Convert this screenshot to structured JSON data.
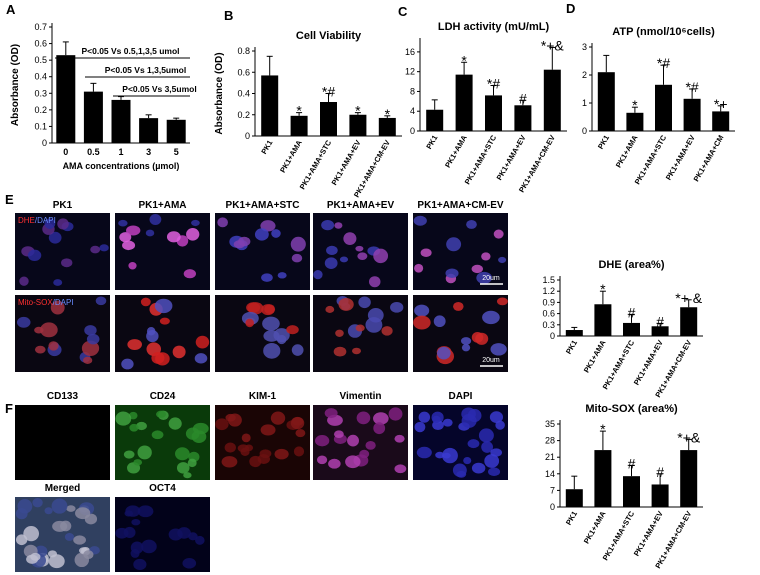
{
  "chart_data": [
    {
      "type": "bar",
      "panel": "A",
      "ylabel": "Absorbance (OD)",
      "xlabel": "AMA concentrations (µmol)",
      "categories": [
        "0",
        "0.5",
        "1",
        "3",
        "5"
      ],
      "values": [
        0.53,
        0.31,
        0.26,
        0.15,
        0.14
      ],
      "errors": [
        0.08,
        0.05,
        0.02,
        0.02,
        0.01
      ],
      "ylim": [
        0,
        0.7
      ],
      "yticks": [
        0,
        0.1,
        0.2,
        0.3,
        0.4,
        0.5,
        0.6,
        0.7
      ],
      "color": "#000000",
      "annotations": [
        "P<0.05 Vs 0.5,1,3,5 umol",
        "P<0.05 Vs 1,3,5umol",
        "P<0.05 Vs 3,5umol"
      ]
    },
    {
      "type": "bar",
      "panel": "B",
      "title": "Cell Viability",
      "ylabel": "Absorbance (OD)",
      "categories": [
        "PK1",
        "PK1+AMA",
        "PK1+AMA+STC",
        "PK1+AMA+EV",
        "PK1+AMA+CM-EV"
      ],
      "values": [
        0.57,
        0.19,
        0.32,
        0.2,
        0.17
      ],
      "errors": [
        0.18,
        0.03,
        0.08,
        0.02,
        0.02
      ],
      "markers": [
        null,
        "*",
        "*#",
        "*",
        "*"
      ],
      "ylim": [
        0,
        0.8
      ],
      "yticks": [
        0,
        0.2,
        0.4,
        0.6,
        0.8
      ],
      "color": "#000000"
    },
    {
      "type": "bar",
      "panel": "C",
      "title": "LDH activity (mU/mL)",
      "categories": [
        "PK1",
        "PK1+AMA",
        "PK1+AMA+STC",
        "PK1+AMA+EV",
        "PK1+AMA+CM-EV"
      ],
      "values": [
        4.3,
        11.4,
        7.2,
        5.2,
        12.4
      ],
      "errors": [
        2,
        2.5,
        2,
        1,
        4.5
      ],
      "markers": [
        null,
        "*",
        "*#",
        "#",
        "*+&"
      ],
      "ylim": [
        0,
        18
      ],
      "yticks": [
        0,
        4,
        8,
        12,
        16
      ],
      "color": "#000000"
    },
    {
      "type": "bar",
      "panel": "D",
      "title": "ATP (nmol/10⁶cells)",
      "categories": [
        "PK1",
        "PK1+AMA",
        "PK1+AMA+STC",
        "PK1+AMA+EV",
        "PK1+AMA+CM"
      ],
      "values": [
        2.1,
        0.65,
        1.65,
        1.15,
        0.7
      ],
      "errors": [
        0.6,
        0.2,
        0.7,
        0.35,
        0.2
      ],
      "markers": [
        null,
        "*",
        "*#",
        "*#",
        "*+"
      ],
      "ylim": [
        0,
        3
      ],
      "yticks": [
        0,
        1,
        2,
        3
      ],
      "color": "#000000"
    },
    {
      "type": "bar",
      "title": "DHE (area%)",
      "categories": [
        "PK1",
        "PK1+AMA",
        "PK1+AMA+STC",
        "PK1+AMA+EV",
        "PK1+AMA+CM-EV"
      ],
      "values": [
        0.16,
        0.85,
        0.35,
        0.26,
        0.77
      ],
      "errors": [
        0.07,
        0.35,
        0.22,
        0.07,
        0.2
      ],
      "markers": [
        null,
        "*",
        "#",
        "#",
        "*+ &"
      ],
      "ylim": [
        0,
        1.5
      ],
      "yticks": [
        0,
        0.3,
        0.6,
        0.9,
        1.2,
        1.5
      ],
      "color": "#000000"
    },
    {
      "type": "bar",
      "title": "Mito-SOX (area%)",
      "categories": [
        "PK1",
        "PK1+AMA",
        "PK1+AMA+STC",
        "PK1+AMA+EV",
        "PK1+AMA+CM-EV"
      ],
      "values": [
        7.5,
        24,
        13,
        9.5,
        24
      ],
      "errors": [
        5.5,
        8,
        4.5,
        4.5,
        4.5
      ],
      "markers": [
        null,
        "*",
        "#",
        "#",
        "*+&"
      ],
      "ylim": [
        0,
        35
      ],
      "yticks": [
        0,
        7,
        14,
        21,
        28,
        35
      ],
      "color": "#000000"
    }
  ],
  "images": {
    "E": {
      "panel": "E",
      "columns": [
        "PK1",
        "PK1+AMA",
        "PK1+AMA+STC",
        "PK1+AMA+EV",
        "PK1+AMA+CM-EV"
      ],
      "rows": [
        [
          "DHE",
          "/DAPI"
        ],
        [
          "Mito-SOX",
          "/DAPI"
        ]
      ],
      "scale_bar": "20um"
    },
    "F": {
      "panel": "F",
      "labels": [
        "CD133",
        "CD24",
        "KIM-1",
        "Vimentin",
        "DAPI",
        "Merged",
        "OCT4"
      ]
    }
  }
}
